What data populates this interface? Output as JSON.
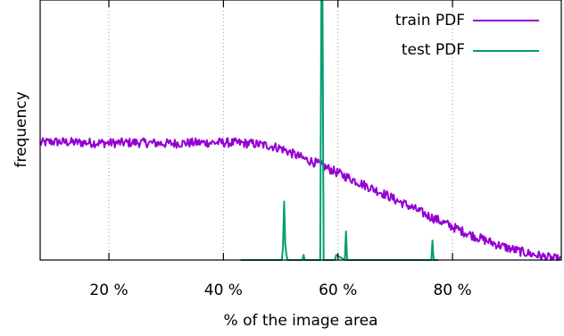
{
  "chart_data": {
    "type": "line",
    "xlabel": "% of the image area",
    "ylabel": "frequency",
    "xlim": [
      8,
      99
    ],
    "ylim": [
      0,
      1
    ],
    "x_ticks": [
      {
        "value": 20,
        "label": "20 %"
      },
      {
        "value": 40,
        "label": "40 %"
      },
      {
        "value": 60,
        "label": "60 %"
      },
      {
        "value": 80,
        "label": "80 %"
      }
    ],
    "grid": {
      "x": true,
      "y": false,
      "style": "dotted"
    },
    "y_tick_labels": false,
    "legend_position": "top-right",
    "series": [
      {
        "name": "train PDF",
        "color": "#9400d3",
        "noise": 0.018,
        "x": [
          8,
          10,
          15,
          20,
          25,
          30,
          35,
          40,
          45,
          48,
          50,
          52,
          54,
          56,
          58,
          60,
          62,
          64,
          66,
          68,
          70,
          72,
          74,
          76,
          78,
          80,
          82,
          84,
          86,
          88,
          90,
          92,
          94,
          96,
          98,
          99
        ],
        "values": [
          0.45,
          0.455,
          0.452,
          0.45,
          0.452,
          0.448,
          0.451,
          0.452,
          0.448,
          0.44,
          0.43,
          0.41,
          0.39,
          0.375,
          0.355,
          0.335,
          0.315,
          0.295,
          0.275,
          0.255,
          0.232,
          0.212,
          0.19,
          0.168,
          0.148,
          0.128,
          0.108,
          0.09,
          0.074,
          0.058,
          0.044,
          0.032,
          0.022,
          0.013,
          0.004,
          0.0
        ]
      },
      {
        "name": "test PDF",
        "color": "#009e73",
        "x": [
          43,
          50.2,
          50.4,
          50.6,
          50.8,
          51.0,
          51.2,
          53.8,
          54.0,
          54.2,
          56.9,
          57.1,
          57.3,
          57.5,
          58.0,
          59.5,
          59.7,
          61.2,
          61.4,
          61.6,
          63,
          70,
          75,
          76.3,
          76.5,
          76.7,
          77.5
        ],
        "values": [
          0.0,
          0.0,
          0.05,
          0.225,
          0.06,
          0.02,
          0.0,
          0.0,
          0.02,
          0.0,
          0.0,
          1.0,
          1.0,
          0.0,
          0.0,
          0.0,
          0.02,
          0.0,
          0.11,
          0.0,
          0.0,
          0.0,
          0.0,
          0.0,
          0.075,
          0.0,
          0.0
        ]
      }
    ]
  }
}
